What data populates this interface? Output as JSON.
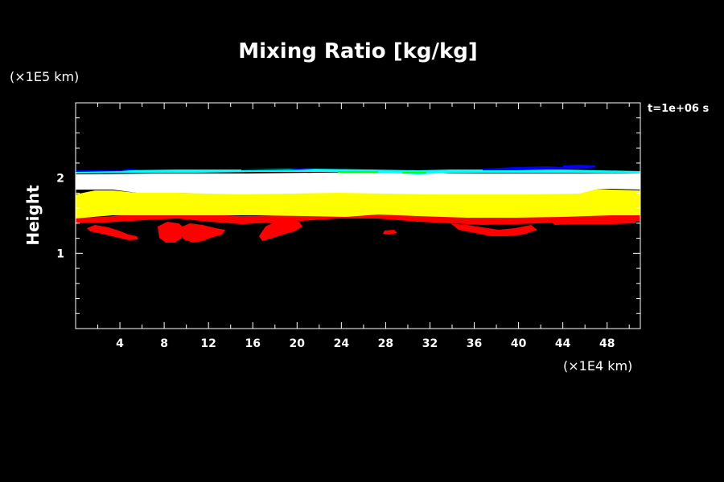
{
  "chart_data": {
    "type": "heatmap",
    "title": "Mixing Ratio [kg/kg]",
    "ylabel": "Height",
    "xunit": "(×1E4 km)",
    "yunit": "(×1E5 km)",
    "time_label": "t=1e+06 s",
    "x_ticks": [
      4,
      8,
      12,
      16,
      20,
      24,
      28,
      32,
      36,
      40,
      44,
      48
    ],
    "y_ticks": [
      1,
      2
    ],
    "xlim": [
      0,
      51
    ],
    "ylim": [
      0,
      3
    ],
    "grid": false,
    "bands": [
      {
        "level": "lowest",
        "color": "#ff0000",
        "y_range": [
          1.1,
          1.55
        ]
      },
      {
        "level": "low",
        "color": "#ffff00",
        "y_range": [
          1.5,
          1.8
        ]
      },
      {
        "level": "high",
        "color": "#ffffff",
        "y_range": [
          1.75,
          2.07
        ]
      },
      {
        "level": "higher",
        "color": "#00ffff",
        "y_range": [
          2.03,
          2.09
        ]
      },
      {
        "level": "highest",
        "color": "#0000ff",
        "y_range": [
          2.08,
          2.11
        ]
      }
    ]
  },
  "colors": {
    "background": "#000000",
    "foreground": "#ffffff",
    "red": "#ff0000",
    "yellow": "#ffff00",
    "white": "#ffffff",
    "cyan": "#00ffff",
    "blue": "#0000ff",
    "green": "#00ff00"
  }
}
